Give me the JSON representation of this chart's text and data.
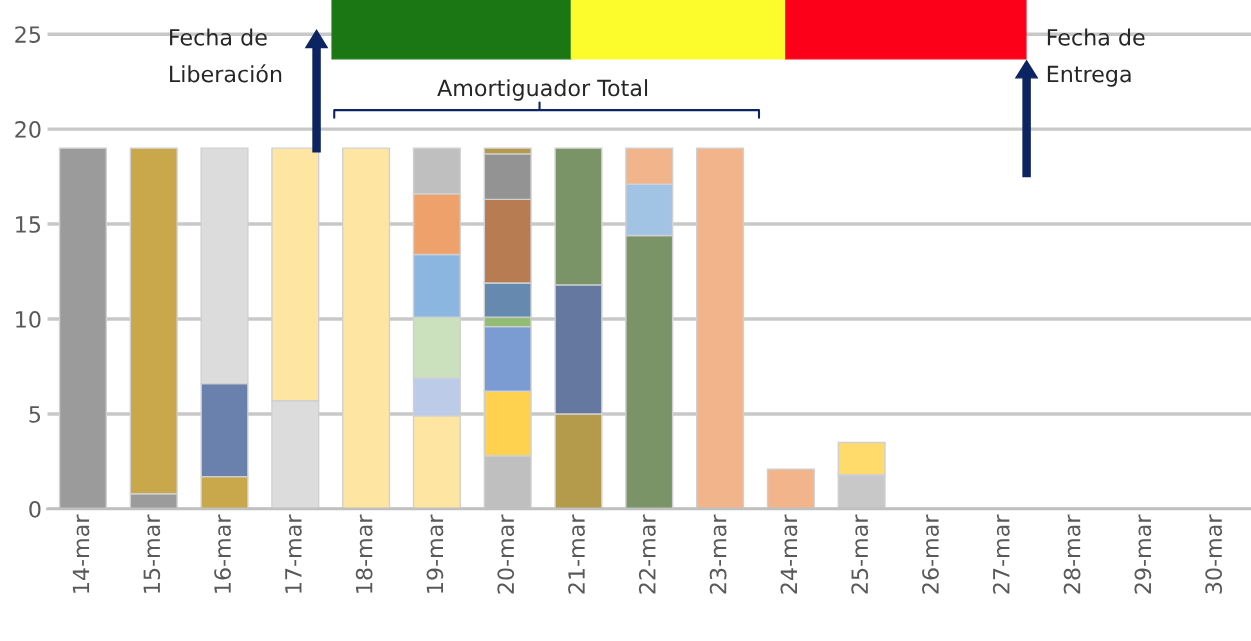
{
  "chart_data": {
    "type": "bar",
    "stacked": true,
    "categories": [
      "14-mar",
      "15-mar",
      "16-mar",
      "17-mar",
      "18-mar",
      "19-mar",
      "20-mar",
      "21-mar",
      "22-mar",
      "23-mar",
      "24-mar",
      "25-mar",
      "26-mar",
      "27-mar",
      "28-mar",
      "29-mar",
      "30-mar"
    ],
    "series": [
      {
        "values": [
          19,
          0.8,
          1.7,
          5.7,
          19,
          4.9,
          2.8,
          5.0,
          14.4,
          19,
          2.1,
          1.8,
          null,
          null,
          null,
          null,
          null
        ],
        "colors": [
          "#9b9b9b",
          "#9b9b9b",
          "#c9a74b",
          "#dcdcdc",
          "#fee6a2",
          "#fee6a2",
          "#bfbfbf",
          "#b49b4b",
          "#7a9467",
          "#f2b48b",
          "#f2b48b",
          "#c8c8c8",
          null,
          null,
          null,
          null,
          null
        ]
      },
      {
        "values": [
          null,
          18.2,
          4.9,
          13.3,
          null,
          2.0,
          3.4,
          6.8,
          2.7,
          null,
          null,
          1.7,
          null,
          null,
          null,
          null,
          null
        ],
        "colors": [
          null,
          "#c9a74b",
          "#6a81ad",
          "#fee6a2",
          null,
          "#bccbe8",
          "#fed24f",
          "#65789f",
          "#a1c4e5",
          null,
          null,
          "#fedb6a",
          null,
          null,
          null,
          null,
          null
        ]
      },
      {
        "values": [
          null,
          null,
          12.4,
          null,
          null,
          3.2,
          3.4,
          7.2,
          1.9,
          null,
          null,
          null,
          null,
          null,
          null,
          null,
          null
        ],
        "colors": [
          null,
          null,
          "#dcdcdc",
          null,
          null,
          "#cbe1bd",
          "#7b9bd3",
          "#7a9467",
          "#f2b48b",
          null,
          null,
          null,
          null,
          null,
          null,
          null,
          null
        ]
      },
      {
        "values": [
          null,
          null,
          null,
          null,
          null,
          3.3,
          0.5,
          null,
          null,
          null,
          null,
          null,
          null,
          null,
          null,
          null,
          null
        ],
        "colors": [
          null,
          null,
          null,
          null,
          null,
          "#8bb6df",
          "#93bd72",
          null,
          null,
          null,
          null,
          null,
          null,
          null,
          null,
          null,
          null
        ]
      },
      {
        "values": [
          null,
          null,
          null,
          null,
          null,
          3.2,
          1.8,
          null,
          null,
          null,
          null,
          null,
          null,
          null,
          null,
          null,
          null
        ],
        "colors": [
          null,
          null,
          null,
          null,
          null,
          "#efa16b",
          "#6689af",
          null,
          null,
          null,
          null,
          null,
          null,
          null,
          null,
          null,
          null
        ]
      },
      {
        "values": [
          null,
          null,
          null,
          null,
          null,
          2.4,
          4.4,
          null,
          null,
          null,
          null,
          null,
          null,
          null,
          null,
          null,
          null
        ],
        "colors": [
          null,
          null,
          null,
          null,
          null,
          "#bfbfbf",
          "#b87c52",
          null,
          null,
          null,
          null,
          null,
          null,
          null,
          null,
          null,
          null
        ]
      },
      {
        "values": [
          null,
          null,
          null,
          null,
          null,
          null,
          2.4,
          null,
          null,
          null,
          null,
          null,
          null,
          null,
          null,
          null,
          null
        ],
        "colors": [
          null,
          null,
          null,
          null,
          null,
          null,
          "#939393",
          null,
          null,
          null,
          null,
          null,
          null,
          null,
          null,
          null,
          null
        ]
      },
      {
        "values": [
          null,
          null,
          null,
          null,
          null,
          null,
          0.3,
          null,
          null,
          null,
          null,
          null,
          null,
          null,
          null,
          null,
          null
        ],
        "colors": [
          null,
          null,
          null,
          null,
          null,
          null,
          "#b49b4b",
          null,
          null,
          null,
          null,
          null,
          null,
          null,
          null,
          null,
          null
        ]
      }
    ],
    "ylim": [
      0,
      26.8
    ],
    "yticks": [
      0,
      5,
      10,
      15,
      20,
      25
    ],
    "grid": "y",
    "legend": false,
    "annotations": [
      "Fecha de\nLiberación",
      "Amortiguador Total",
      "Fecha de\nEntrega"
    ]
  }
}
